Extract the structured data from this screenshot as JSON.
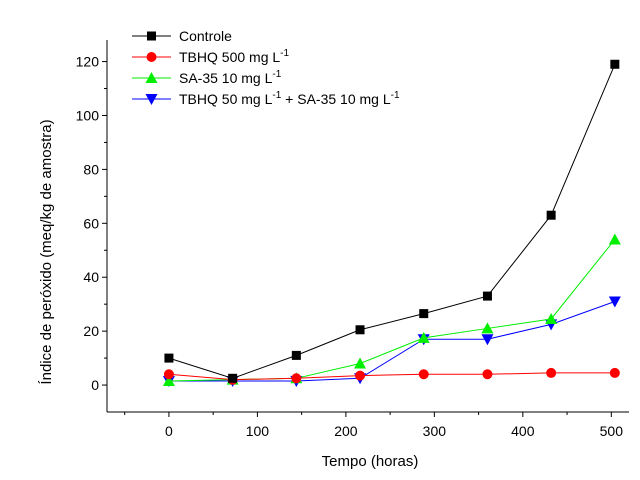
{
  "chart_data": {
    "type": "line",
    "xlabel": "Tempo (horas)",
    "ylabel": "Índice de peróxido (meq/kg de amostra)",
    "xlim": [
      -70,
      520
    ],
    "ylim": [
      -10,
      128
    ],
    "xticks": [
      0,
      100,
      200,
      300,
      400,
      500
    ],
    "yticks": [
      0,
      20,
      40,
      60,
      80,
      100,
      120
    ],
    "legend_position": "top-left",
    "series": [
      {
        "name": "Controle",
        "color": "#000000",
        "marker": "square",
        "x": [
          0,
          72,
          144,
          216,
          288,
          360,
          432,
          504
        ],
        "y": [
          10,
          2.5,
          11,
          20.5,
          26.5,
          33,
          63,
          119
        ]
      },
      {
        "name": "TBHQ 500 mg L-1",
        "color": "#ff0000",
        "marker": "circle",
        "x": [
          0,
          72,
          144,
          216,
          288,
          360,
          432,
          504
        ],
        "y": [
          4,
          2,
          2.5,
          3.5,
          4,
          4,
          4.5,
          4.5
        ]
      },
      {
        "name": "SA-35 10 mg L-1",
        "color": "#00ee00",
        "marker": "triangle-up",
        "x": [
          0,
          72,
          144,
          216,
          288,
          360,
          432,
          504
        ],
        "y": [
          1.5,
          2,
          2.5,
          8,
          17.5,
          21,
          24.5,
          54
        ]
      },
      {
        "name": "TBHQ 50 mg L-1 + SA-35 10 mg L-1",
        "color": "#0000ff",
        "marker": "triangle-down",
        "x": [
          0,
          72,
          144,
          216,
          288,
          360,
          432,
          504
        ],
        "y": [
          1.5,
          1.5,
          1.5,
          2.5,
          17,
          17,
          22.5,
          31
        ]
      }
    ],
    "legend": [
      {
        "text": "Controle",
        "sup": "",
        "text2": "",
        "sup2": ""
      },
      {
        "text": "TBHQ 500 mg L",
        "sup": "-1",
        "text2": "",
        "sup2": ""
      },
      {
        "text": "SA-35 10 mg L",
        "sup": "-1",
        "text2": "",
        "sup2": ""
      },
      {
        "text": "TBHQ 50 mg L",
        "sup": "-1",
        "text2": " + SA-35 10 mg L",
        "sup2": "-1"
      }
    ]
  }
}
